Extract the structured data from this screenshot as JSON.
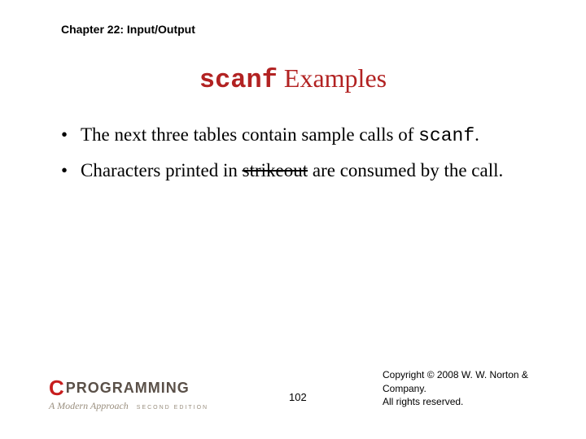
{
  "title_color": "#b22222",
  "chapter": "Chapter 22: Input/Output",
  "title_code": "scanf",
  "title_rest": " Examples",
  "bullet1_pre": "The next three tables contain sample calls of ",
  "bullet1_code": "scanf",
  "bullet1_post": ".",
  "bullet2_pre": "Characters printed in ",
  "bullet2_strike": "strikeout",
  "bullet2_post": " are consumed by the call.",
  "logo_c": "C",
  "logo_prog": "PROGRAMMING",
  "logo_sub": "A Modern Approach",
  "logo_edition": "SECOND EDITION",
  "logo_c_color": "#c71e1e",
  "logo_prog_color": "#5a5048",
  "logo_sub_color": "#9a8f7f",
  "page_number": "102",
  "copyright_line1": "Copyright © 2008 W. W. Norton & Company.",
  "copyright_line2": "All rights reserved."
}
